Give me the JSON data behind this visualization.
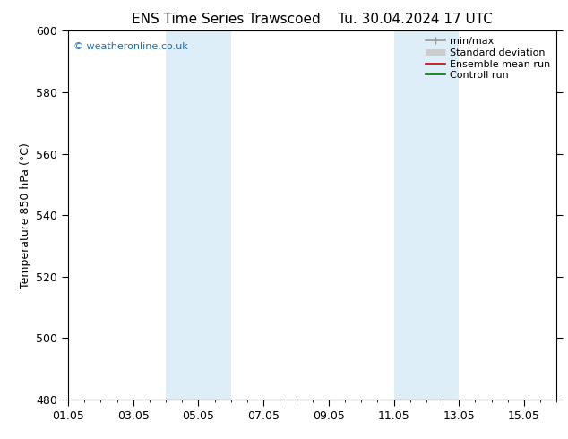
{
  "title_left": "ENS Time Series Trawscoed",
  "title_right": "Tu. 30.04.2024 17 UTC",
  "ylabel": "Temperature 850 hPa (°C)",
  "ylim": [
    480,
    600
  ],
  "yticks": [
    480,
    500,
    520,
    540,
    560,
    580,
    600
  ],
  "xlim": [
    0,
    15
  ],
  "xtick_positions": [
    0,
    2,
    4,
    6,
    8,
    10,
    12,
    14
  ],
  "xtick_labels": [
    "01.05",
    "03.05",
    "05.05",
    "07.05",
    "09.05",
    "11.05",
    "13.05",
    "15.05"
  ],
  "shaded_bands": [
    {
      "xmin": 3.0,
      "xmax": 5.0
    },
    {
      "xmin": 10.0,
      "xmax": 12.0
    }
  ],
  "shade_color": "#ddeef8",
  "watermark": "© weatheronline.co.uk",
  "watermark_color": "#1a6eb5",
  "legend_items": [
    {
      "label": "min/max",
      "color": "#999999",
      "lw": 1.2
    },
    {
      "label": "Standard deviation",
      "color": "#cccccc",
      "lw": 5
    },
    {
      "label": "Ensemble mean run",
      "color": "#cc0000",
      "lw": 1.2
    },
    {
      "label": "Controll run",
      "color": "#007700",
      "lw": 1.2
    }
  ],
  "background_color": "#ffffff",
  "tick_color": "#000000",
  "figsize": [
    6.34,
    4.9
  ],
  "dpi": 100
}
